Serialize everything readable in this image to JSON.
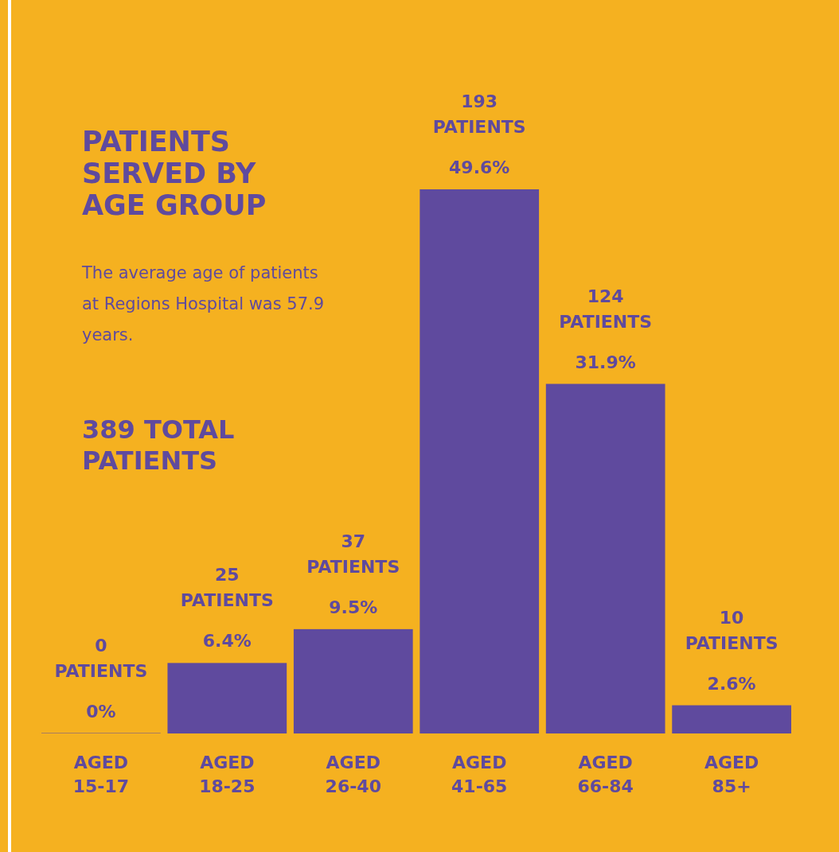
{
  "chart_data": {
    "type": "bar",
    "title": "PATIENTS SERVED BY AGE GROUP",
    "subtitle": "The average age of patients at Regions Hospital was 57.9 years.",
    "annotations": [
      "389 TOTAL PATIENTS"
    ],
    "categories": [
      "AGED 15-17",
      "AGED 18-25",
      "AGED 26-40",
      "AGED 41-65",
      "AGED 66-84",
      "AGED 85+"
    ],
    "values": [
      0,
      25,
      37,
      193,
      124,
      10
    ],
    "value_labels": [
      "0\nPATIENTS\n0%",
      "25\nPATIENTS\n6.4%",
      "37\nPATIENTS\n9.5%",
      "193\nPATIENTS\n49.6%",
      "124\nPATIENTS\n31.9%",
      "10\nPATIENTS\n2.6%"
    ],
    "color": "#5f4a9e"
  }
}
